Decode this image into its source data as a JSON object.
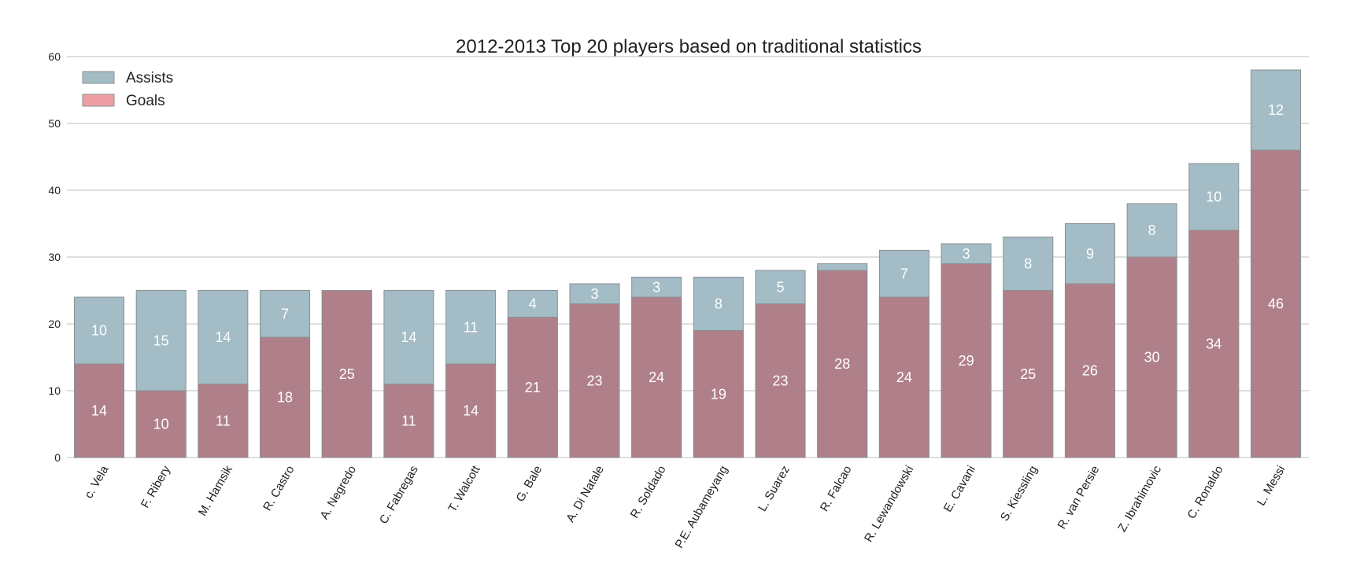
{
  "chart_data": {
    "type": "bar",
    "stacked": true,
    "title": "2012-2013 Top 20 players based on traditional statistics",
    "xlabel": "",
    "ylabel": "",
    "ylim": [
      0,
      60
    ],
    "yticks": [
      0,
      10,
      20,
      30,
      40,
      50,
      60
    ],
    "grid": "horizontal",
    "legend_position": "top-left",
    "categories": [
      "c. Vela",
      "F. Ribery",
      "M. Hamsik",
      "R. Castro",
      "A. Negredo",
      "C. Fabregas",
      "T. Walcott",
      "G. Bale",
      "A. Di Natale",
      "R. Soldado",
      "P.E. Aubameyang",
      "L. Suarez",
      "R. Falcao",
      "R. Lewandowski",
      "E. Cavani",
      "S. Kiessling",
      "R. van Persie",
      "Z. Ibrahimovic",
      "C. Ronaldo",
      "L. Messi"
    ],
    "series": [
      {
        "name": "Goals",
        "color": "#b0808a",
        "values": [
          14,
          10,
          11,
          18,
          25,
          11,
          14,
          21,
          23,
          24,
          19,
          23,
          28,
          24,
          29,
          25,
          26,
          30,
          34,
          46
        ]
      },
      {
        "name": "Assists",
        "color": "#a3bcc5",
        "values": [
          10,
          15,
          14,
          7,
          0,
          14,
          11,
          4,
          3,
          3,
          8,
          5,
          1,
          7,
          3,
          8,
          9,
          8,
          10,
          12
        ]
      }
    ],
    "assist_labels_shown": [
      true,
      true,
      true,
      true,
      false,
      true,
      true,
      true,
      true,
      true,
      true,
      true,
      false,
      true,
      true,
      true,
      true,
      true,
      true,
      true
    ],
    "legend": [
      {
        "label": "Assists",
        "color": "#a3bcc5"
      },
      {
        "label": "Goals",
        "color": "#f09ea6"
      }
    ]
  }
}
